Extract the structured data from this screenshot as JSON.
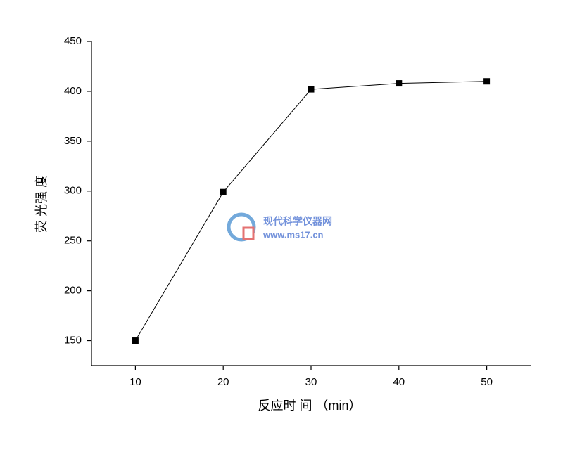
{
  "chart_data": {
    "type": "line",
    "x_label": "反应时 间 （min）",
    "y_label": "荧 光强 度",
    "x": [
      10,
      20,
      30,
      40,
      50
    ],
    "series": [
      {
        "color": "#000000",
        "values": [
          150,
          299,
          402,
          408,
          410
        ]
      }
    ],
    "xlim": [
      5,
      55
    ],
    "xticks": [
      10,
      20,
      30,
      40,
      50
    ],
    "ylim": [
      125,
      450
    ],
    "yticks": [
      150,
      200,
      250,
      300,
      350,
      400,
      450
    ],
    "grid": false,
    "watermark": {
      "name": "现代科学仪器网",
      "url": "www.ms17.cn"
    }
  }
}
